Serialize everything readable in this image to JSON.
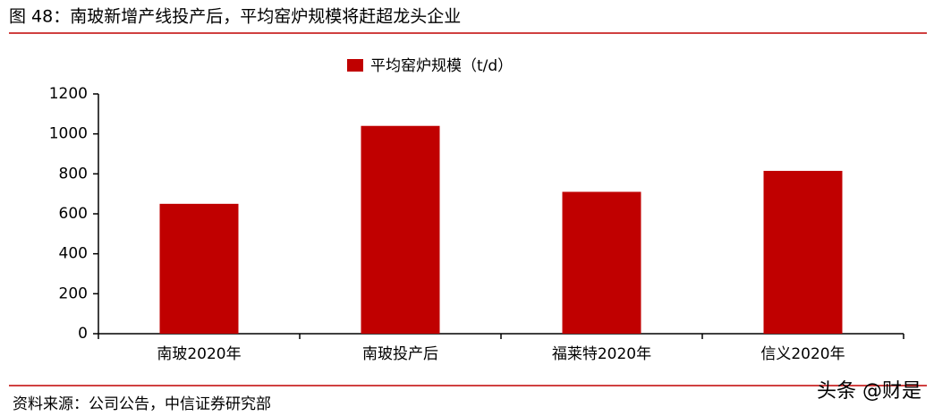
{
  "chart_data": {
    "type": "bar",
    "title": "图 48：南玻新增产线投产后，平均窑炉规模将赶超龙头企业",
    "categories": [
      "南玻2020年",
      "南玻投产后",
      "福莱特2020年",
      "信义2020年"
    ],
    "series": [
      {
        "name": "平均窑炉规模（t/d）",
        "color": "#c00000",
        "values": [
          650,
          1040,
          710,
          815
        ]
      }
    ],
    "ylim": [
      0,
      1200
    ],
    "yticks": [
      0,
      200,
      400,
      600,
      800,
      1000,
      1200
    ],
    "legend": "top",
    "source": "资料来源：公司公告，中信证券研究部",
    "watermark": "头条 @财是"
  }
}
